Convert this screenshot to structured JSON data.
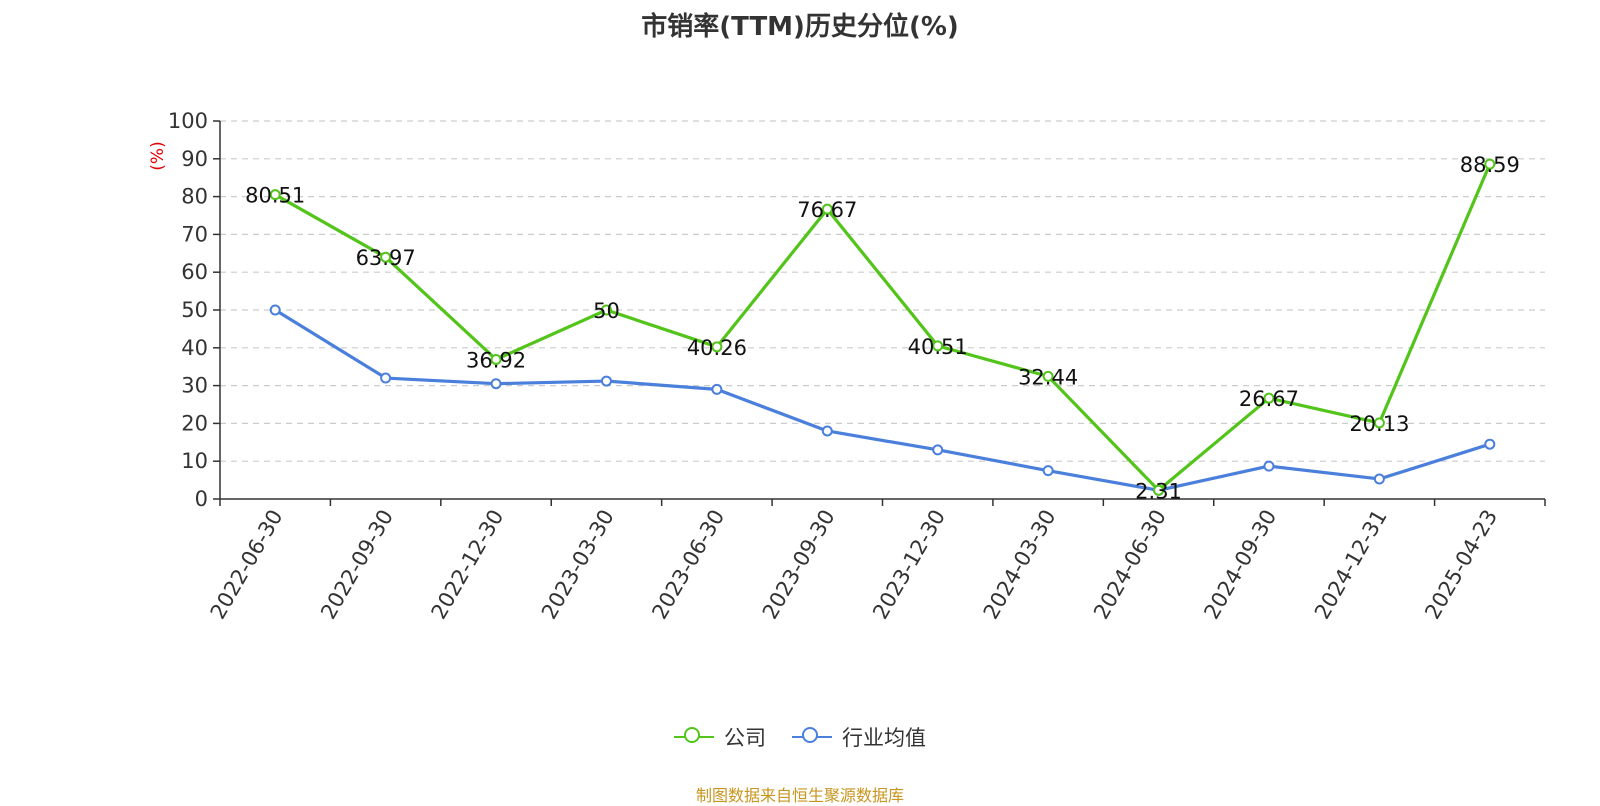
{
  "chart_data": {
    "type": "line",
    "title": "市销率(TTM)历史分位(%)",
    "ylabel": "(%)",
    "ylim": [
      0,
      100
    ],
    "yticks": [
      0,
      10,
      20,
      30,
      40,
      50,
      60,
      70,
      80,
      90,
      100
    ],
    "grid": true,
    "legend_position": "bottom",
    "categories": [
      "2022-06-30",
      "2022-09-30",
      "2022-12-30",
      "2023-03-30",
      "2023-06-30",
      "2023-09-30",
      "2023-12-30",
      "2024-03-30",
      "2024-06-30",
      "2024-09-30",
      "2024-12-31",
      "2025-04-23"
    ],
    "series": [
      {
        "name": "公司",
        "color": "#52c41a",
        "show_labels": true,
        "values": [
          80.51,
          63.97,
          36.92,
          50,
          40.26,
          76.67,
          40.51,
          32.44,
          2.31,
          26.67,
          20.13,
          88.59
        ]
      },
      {
        "name": "行业均值",
        "color": "#4a7fdc",
        "show_labels": false,
        "values": [
          50,
          32,
          30.5,
          31.2,
          29,
          18,
          13,
          7.5,
          2.3,
          8.7,
          5.3,
          14.5
        ]
      }
    ]
  },
  "source_note": "制图数据来自恒生聚源数据库"
}
